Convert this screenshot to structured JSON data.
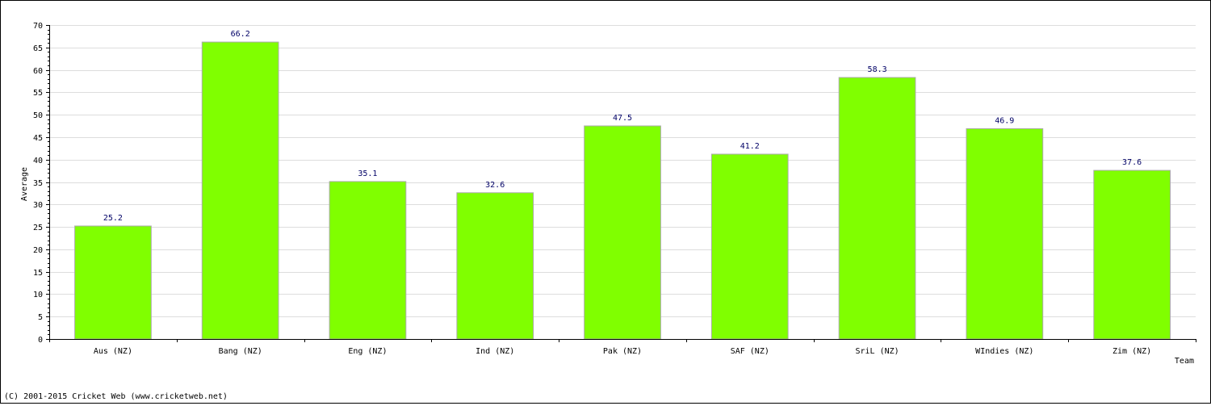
{
  "chart_data": {
    "type": "bar",
    "categories": [
      "Aus (NZ)",
      "Bang (NZ)",
      "Eng (NZ)",
      "Ind (NZ)",
      "Pak (NZ)",
      "SAF (NZ)",
      "SriL (NZ)",
      "WIndies (NZ)",
      "Zim (NZ)"
    ],
    "values": [
      25.2,
      66.2,
      35.1,
      32.6,
      47.5,
      41.2,
      58.3,
      46.9,
      37.6
    ],
    "data_labels": [
      "25.2",
      "66.2",
      "35.1",
      "32.6",
      "47.5",
      "41.2",
      "58.3",
      "46.9",
      "37.6"
    ],
    "title": "",
    "xlabel": "Team",
    "ylabel": "Average",
    "ylim": [
      0,
      70
    ],
    "yticks": [
      "0",
      "5",
      "10",
      "15",
      "20",
      "25",
      "30",
      "35",
      "40",
      "45",
      "50",
      "55",
      "60",
      "65",
      "70"
    ],
    "grid": true,
    "bar_color": "#80ff00",
    "bar_edge_color": "#aaaaaa",
    "label_color": "#000066"
  },
  "footer": "(C) 2001-2015 Cricket Web (www.cricketweb.net)"
}
